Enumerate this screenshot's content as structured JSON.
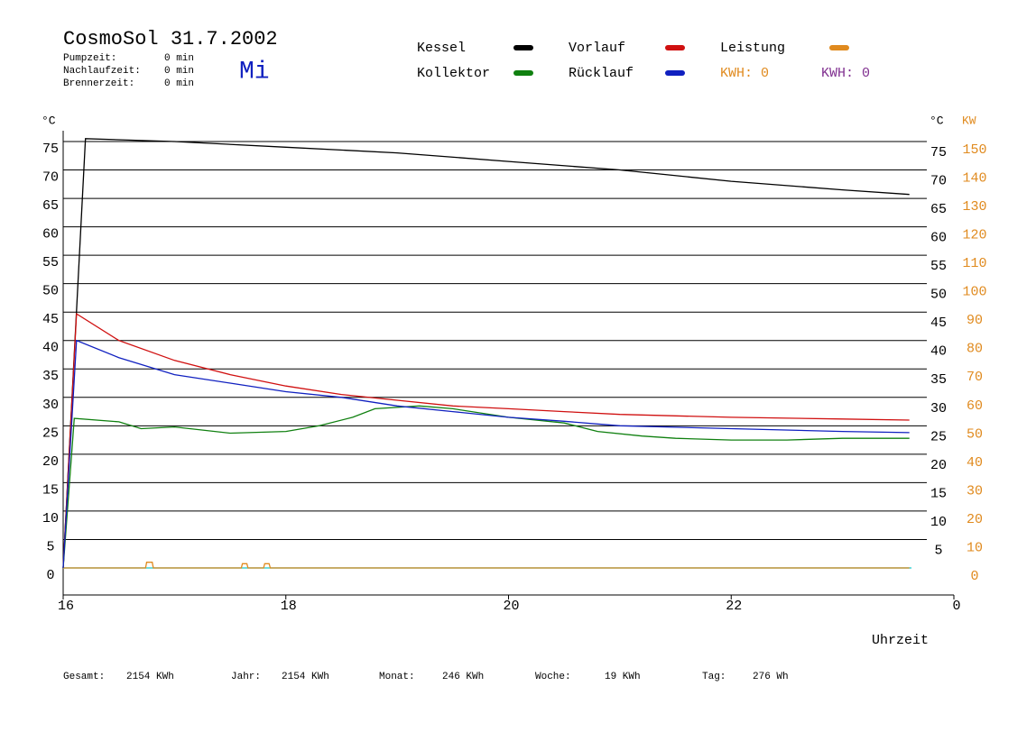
{
  "chart_data": {
    "type": "line",
    "title": "CosmoSol 31.7.2002",
    "day": "Mi",
    "info": [
      {
        "label": "Pumpzeit:",
        "value": "0 min"
      },
      {
        "label": "Nachlaufzeit:",
        "value": "0 min"
      },
      {
        "label": "Brennerzeit:",
        "value": "0 min"
      }
    ],
    "y_unit_left": "°C",
    "y_unit_right": "°C",
    "y2_unit": "KW",
    "x_label": "Uhrzeit",
    "xlim": [
      16,
      24
    ],
    "xticks": [
      16,
      18,
      20,
      22,
      {
        "value": 24,
        "label": "0"
      }
    ],
    "ylim": [
      0,
      75
    ],
    "yticks": [
      0,
      5,
      10,
      15,
      20,
      25,
      30,
      35,
      40,
      45,
      50,
      55,
      60,
      65,
      70,
      75
    ],
    "y_right_ticks": [
      5,
      10,
      15,
      20,
      25,
      30,
      35,
      40,
      45,
      50,
      55,
      60,
      65,
      70,
      75
    ],
    "y2lim": [
      0,
      150
    ],
    "y2ticks": [
      0,
      10,
      20,
      30,
      40,
      50,
      60,
      70,
      80,
      90,
      100,
      110,
      120,
      130,
      140,
      150
    ],
    "y2_color": "#e08a1e",
    "grid": true,
    "series": [
      {
        "name": "Kessel",
        "color": "#000000",
        "x": [
          16.0,
          16.2,
          17,
          18,
          19,
          20,
          21,
          22,
          23,
          23.6
        ],
        "values": [
          0,
          75.5,
          75,
          74,
          73,
          71.5,
          70,
          68,
          66.5,
          65.7
        ]
      },
      {
        "name": "Vorlauf",
        "color": "#d01010",
        "x": [
          16.0,
          16.12,
          16.5,
          17,
          17.5,
          18,
          18.5,
          19,
          19.5,
          20,
          20.5,
          21,
          22,
          23,
          23.6
        ],
        "values": [
          0,
          44.7,
          40,
          36.5,
          34,
          32,
          30.5,
          29.5,
          28.5,
          28,
          27.5,
          27,
          26.5,
          26.2,
          26
        ]
      },
      {
        "name": "Leistung",
        "color": "#e08a1e",
        "axis": "y2",
        "x": [
          16.0,
          16.74,
          16.75,
          16.8,
          16.81,
          17.6,
          17.61,
          17.65,
          17.66,
          17.8,
          17.81,
          17.85,
          17.86,
          23.6
        ],
        "values": [
          0,
          0,
          2,
          2,
          0,
          0,
          1.5,
          1.5,
          0,
          0,
          1.5,
          1.5,
          0,
          0
        ]
      },
      {
        "name": "Kollektor",
        "color": "#108010",
        "x": [
          16.0,
          16.1,
          16.5,
          16.7,
          17,
          17.5,
          18,
          18.3,
          18.6,
          18.8,
          19.2,
          19.5,
          20,
          20.5,
          20.8,
          21.2,
          21.5,
          22,
          22.5,
          23,
          23.6
        ],
        "values": [
          0,
          26.3,
          25.7,
          24.5,
          24.8,
          23.7,
          24,
          25,
          26.5,
          28,
          28.5,
          28,
          26.5,
          25.5,
          24,
          23.2,
          22.8,
          22.5,
          22.5,
          22.8,
          22.8
        ]
      },
      {
        "name": "Rücklauf",
        "color": "#1020c0",
        "x": [
          16.0,
          16.12,
          16.5,
          17,
          17.5,
          18,
          18.5,
          19,
          19.5,
          20,
          20.5,
          21,
          22,
          23,
          23.6
        ],
        "values": [
          0,
          40,
          37,
          34,
          32.5,
          31,
          30,
          28.5,
          27.5,
          26.5,
          25.8,
          25,
          24.5,
          24,
          23.8
        ]
      }
    ],
    "kwh_labels": [
      {
        "text": "KWH: 0",
        "color": "#e08a1e"
      },
      {
        "text": "KWH: 0",
        "color": "#803090"
      }
    ],
    "totals": [
      {
        "label": "Gesamt:",
        "value": "2154 KWh"
      },
      {
        "label": "Jahr:",
        "value": "2154 KWh"
      },
      {
        "label": "Monat:",
        "value": "246 KWh"
      },
      {
        "label": "Woche:",
        "value": "19 KWh"
      },
      {
        "label": "Tag:",
        "value": "276 Wh"
      }
    ]
  }
}
